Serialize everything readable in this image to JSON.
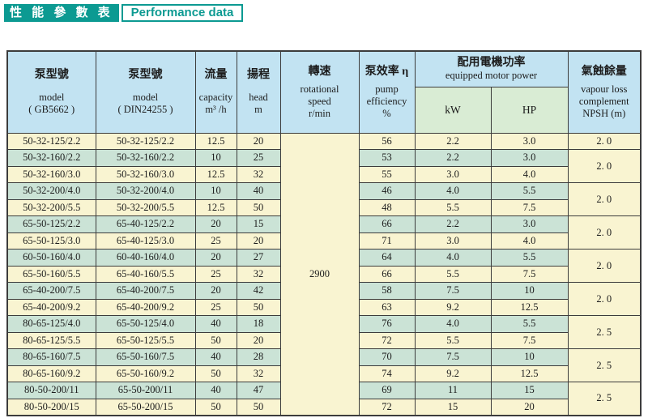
{
  "page_title": {
    "zh": "性 能 參 數 表",
    "en": "Performance data"
  },
  "colors": {
    "accent_teal": "#0c9a92",
    "header_blue": "#c2e3f2",
    "header_green": "#d9ecd4",
    "row_cream": "#f9f4d1",
    "row_green": "#cbe3d6",
    "border": "#3c3c3c"
  },
  "table": {
    "headers": {
      "model_gb": {
        "zh": "泵型號",
        "line1": "model",
        "line2": "( GB5662 )"
      },
      "model_din": {
        "zh": "泵型號",
        "line1": "model",
        "line2": "( DIN24255 )"
      },
      "capacity": {
        "zh": "流量",
        "line1": "capacity",
        "line2": "m³ /h"
      },
      "head": {
        "zh": "揚程",
        "line1": "head",
        "line2": "m"
      },
      "speed": {
        "zh": "轉速",
        "line1": "rotational",
        "line2": "speed",
        "line3": "r/min"
      },
      "efficiency": {
        "zh": "泵效率 η",
        "line1": "pump",
        "line2": "efficiency",
        "line3": "%"
      },
      "motor_power": {
        "zh": "配用電機功率",
        "en": "equipped motor power",
        "kw": "kW",
        "hp": "HP"
      },
      "npsh": {
        "zh": "氣蝕餘量",
        "line1": "vapour loss",
        "line2": "complement",
        "line3": "NPSH  (m)"
      }
    },
    "speed_value": "2900",
    "rows": [
      {
        "gb": "50-32-125/2.2",
        "din": "50-32-125/2.2",
        "capacity": "12.5",
        "head": "20",
        "eff": "56",
        "kw": "2.2",
        "hp": "3.0",
        "npsh": {
          "span": 1,
          "value": "2. 0"
        }
      },
      {
        "gb": "50-32-160/2.2",
        "din": "50-32-160/2.2",
        "capacity": "10",
        "head": "25",
        "eff": "53",
        "kw": "2.2",
        "hp": "3.0",
        "npsh": {
          "span": 2,
          "value": "2. 0"
        }
      },
      {
        "gb": "50-32-160/3.0",
        "din": "50-32-160/3.0",
        "capacity": "12.5",
        "head": "32",
        "eff": "55",
        "kw": "3.0",
        "hp": "4.0"
      },
      {
        "gb": "50-32-200/4.0",
        "din": "50-32-200/4.0",
        "capacity": "10",
        "head": "40",
        "eff": "46",
        "kw": "4.0",
        "hp": "5.5",
        "npsh": {
          "span": 2,
          "value": "2. 0"
        }
      },
      {
        "gb": "50-32-200/5.5",
        "din": "50-32-200/5.5",
        "capacity": "12.5",
        "head": "50",
        "eff": "48",
        "kw": "5.5",
        "hp": "7.5"
      },
      {
        "gb": "65-50-125/2.2",
        "din": "65-40-125/2.2",
        "capacity": "20",
        "head": "15",
        "eff": "66",
        "kw": "2.2",
        "hp": "3.0",
        "npsh": {
          "span": 2,
          "value": "2. 0"
        }
      },
      {
        "gb": "65-50-125/3.0",
        "din": "65-40-125/3.0",
        "capacity": "25",
        "head": "20",
        "eff": "71",
        "kw": "3.0",
        "hp": "4.0"
      },
      {
        "gb": "60-50-160/4.0",
        "din": "60-40-160/4.0",
        "capacity": "20",
        "head": "27",
        "eff": "64",
        "kw": "4.0",
        "hp": "5.5",
        "npsh": {
          "span": 2,
          "value": "2. 0"
        }
      },
      {
        "gb": "65-50-160/5.5",
        "din": "65-40-160/5.5",
        "capacity": "25",
        "head": "32",
        "eff": "66",
        "kw": "5.5",
        "hp": "7.5"
      },
      {
        "gb": "65-40-200/7.5",
        "din": "65-40-200/7.5",
        "capacity": "20",
        "head": "42",
        "eff": "58",
        "kw": "7.5",
        "hp": "10",
        "npsh": {
          "span": 2,
          "value": "2. 0"
        }
      },
      {
        "gb": "65-40-200/9.2",
        "din": "65-40-200/9.2",
        "capacity": "25",
        "head": "50",
        "eff": "63",
        "kw": "9.2",
        "hp": "12.5"
      },
      {
        "gb": "80-65-125/4.0",
        "din": "65-50-125/4.0",
        "capacity": "40",
        "head": "18",
        "eff": "76",
        "kw": "4.0",
        "hp": "5.5",
        "npsh": {
          "span": 2,
          "value": "2. 5"
        }
      },
      {
        "gb": "80-65-125/5.5",
        "din": "65-50-125/5.5",
        "capacity": "50",
        "head": "20",
        "eff": "72",
        "kw": "5.5",
        "hp": "7.5"
      },
      {
        "gb": "80-65-160/7.5",
        "din": "65-50-160/7.5",
        "capacity": "40",
        "head": "28",
        "eff": "70",
        "kw": "7.5",
        "hp": "10",
        "npsh": {
          "span": 2,
          "value": "2. 5"
        }
      },
      {
        "gb": "80-65-160/9.2",
        "din": "65-50-160/9.2",
        "capacity": "50",
        "head": "32",
        "eff": "74",
        "kw": "9.2",
        "hp": "12.5"
      },
      {
        "gb": "80-50-200/11",
        "din": "65-50-200/11",
        "capacity": "40",
        "head": "47",
        "eff": "69",
        "kw": "11",
        "hp": "15",
        "npsh": {
          "span": 2,
          "value": "2. 5"
        }
      },
      {
        "gb": "80-50-200/15",
        "din": "65-50-200/15",
        "capacity": "50",
        "head": "50",
        "eff": "72",
        "kw": "15",
        "hp": "20"
      }
    ]
  }
}
